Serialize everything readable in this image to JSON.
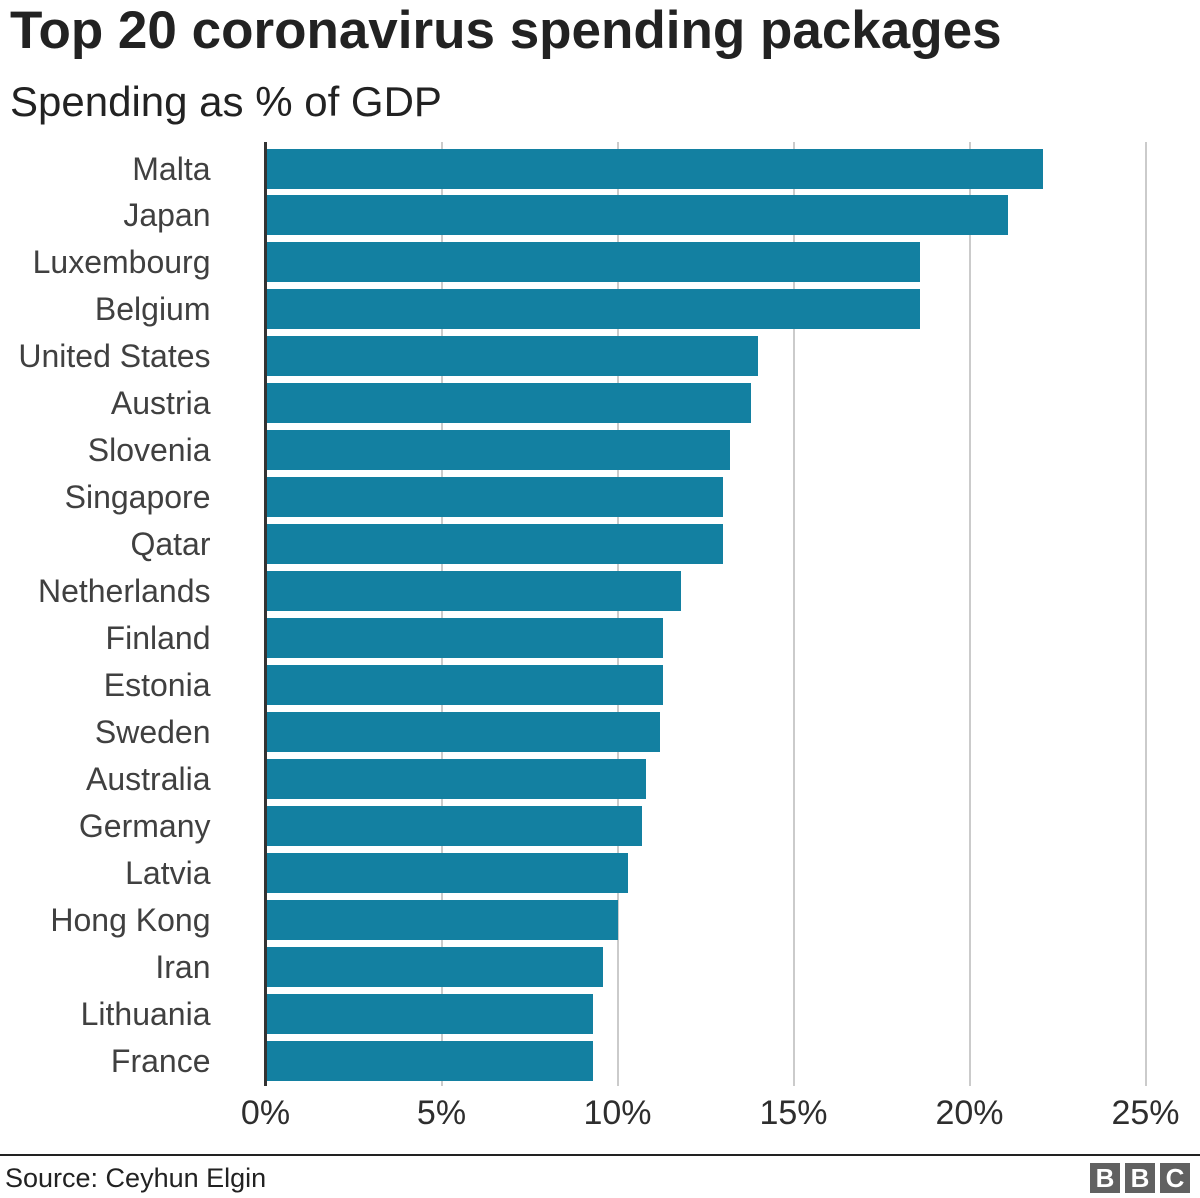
{
  "header": {
    "title": "Top 20 coronavirus spending packages",
    "subtitle": "Spending as % of GDP"
  },
  "chart_data": {
    "type": "bar",
    "orientation": "horizontal",
    "title": "Top 20 coronavirus spending packages",
    "subtitle": "Spending as % of GDP",
    "xlabel": "",
    "ylabel": "",
    "categories": [
      "Malta",
      "Japan",
      "Luxembourg",
      "Belgium",
      "United States",
      "Austria",
      "Slovenia",
      "Singapore",
      "Qatar",
      "Netherlands",
      "Finland",
      "Estonia",
      "Sweden",
      "Australia",
      "Germany",
      "Latvia",
      "Hong Kong",
      "Iran",
      "Lithuania",
      "France"
    ],
    "values": [
      22.1,
      21.1,
      18.6,
      18.6,
      14.0,
      13.8,
      13.2,
      13.0,
      13.0,
      11.8,
      11.3,
      11.3,
      11.2,
      10.8,
      10.7,
      10.3,
      10.0,
      9.6,
      9.3,
      9.3
    ],
    "xlim": [
      0,
      25
    ],
    "x_ticks": [
      {
        "value": 0,
        "label": "0%"
      },
      {
        "value": 5,
        "label": "5%"
      },
      {
        "value": 10,
        "label": "10%"
      },
      {
        "value": 15,
        "label": "15%"
      },
      {
        "value": 20,
        "label": "20%"
      },
      {
        "value": 25,
        "label": "25%"
      }
    ],
    "grid": "vertical",
    "legend": "none",
    "colors": {
      "bar": "#1380A1",
      "gridline": "#cbcbcb",
      "axis_line": "#333333",
      "text": "#222222"
    }
  },
  "footer": {
    "source": "Source: Ceyhun Elgin",
    "logo_letters": [
      "B",
      "B",
      "C"
    ]
  }
}
